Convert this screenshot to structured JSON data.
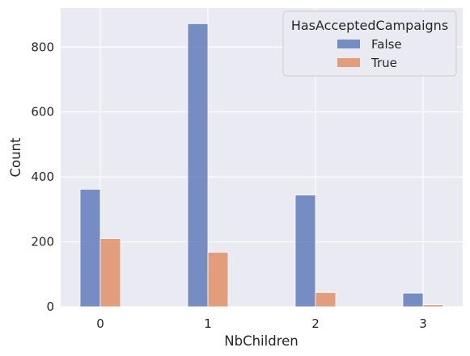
{
  "chart_data": {
    "type": "bar",
    "xlabel": "NbChildren",
    "ylabel": "Count",
    "categories": [
      "0",
      "1",
      "2",
      "3"
    ],
    "ylim": [
      0,
      920
    ],
    "yticks": [
      0,
      200,
      400,
      600,
      800
    ],
    "grid": true,
    "legend": {
      "title": "HasAcceptedCampaigns",
      "placement": "top-right"
    },
    "series": [
      {
        "name": "False",
        "color": "#5975b6",
        "values": [
          362,
          872,
          344,
          42
        ]
      },
      {
        "name": "True",
        "color": "#e0895f",
        "values": [
          210,
          168,
          44,
          6
        ]
      }
    ]
  }
}
